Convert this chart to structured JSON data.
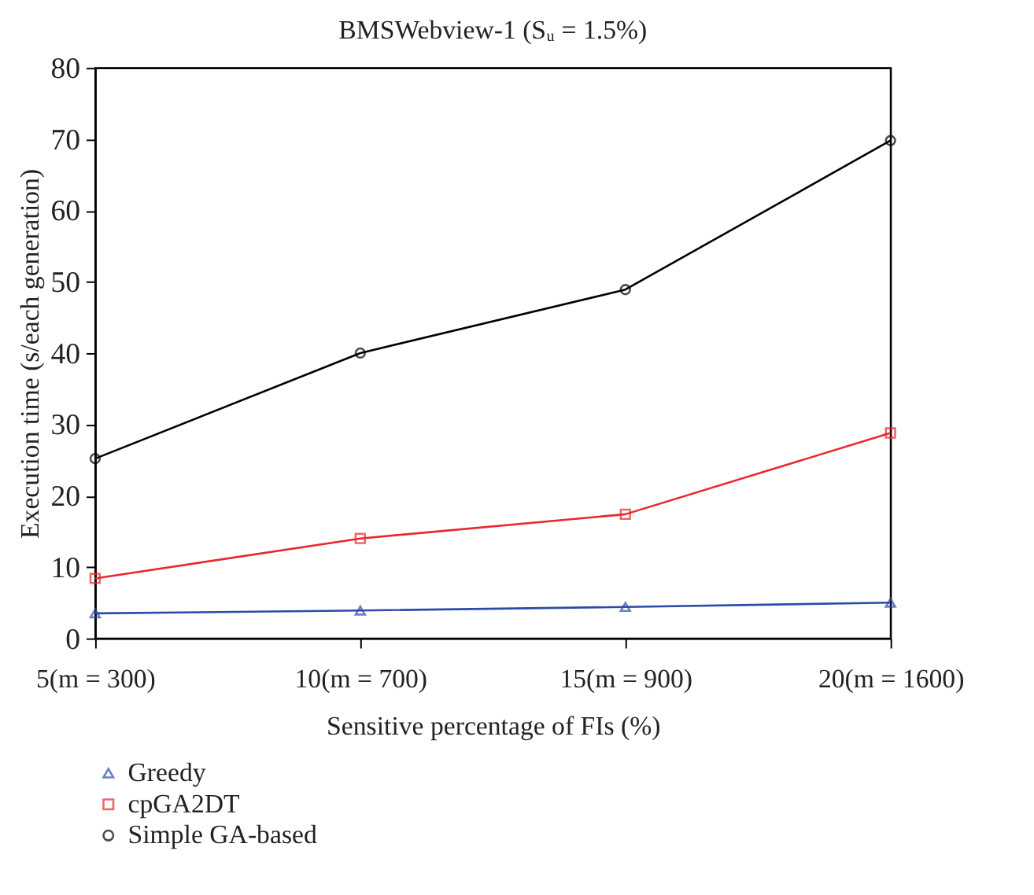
{
  "chart_data": {
    "type": "line",
    "title": "BMSWebview-1 (Sᵤ = 1.5%)",
    "xlabel": "Sensitive percentage of FIs (%)",
    "ylabel": "Execution time (s/each generation)",
    "categories": [
      "5(m = 300)",
      "10(m = 700)",
      "15(m = 900)",
      "20(m = 1600)"
    ],
    "series": [
      {
        "name": "Greedy",
        "color": "#2b4ba8",
        "marker": "triangle",
        "values": [
          3.5,
          3.9,
          4.4,
          5.0
        ]
      },
      {
        "name": "cpGA2DT",
        "color": "#e8282e",
        "marker": "square",
        "values": [
          8.4,
          14.0,
          17.4,
          28.8
        ]
      },
      {
        "name": "Simple GA-based",
        "color": "#000000",
        "marker": "circle",
        "values": [
          25.2,
          40.0,
          48.9,
          69.8
        ]
      }
    ],
    "ylim": [
      0,
      80
    ],
    "yticks": [
      0,
      10,
      20,
      30,
      40,
      50,
      60,
      70,
      80
    ],
    "grid": false,
    "legend": "bottom left",
    "line_style": "solid"
  }
}
